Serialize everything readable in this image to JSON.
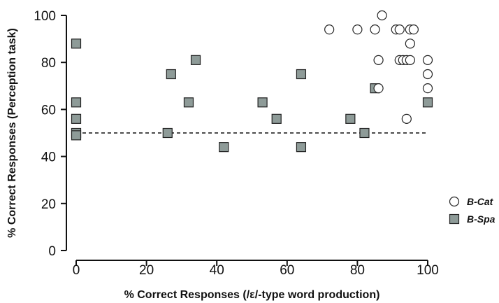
{
  "chart_data": {
    "type": "scatter",
    "xlabel": "% Correct Responses (/ε/-type word production)",
    "ylabel": "% Correct Responses (Perception task)",
    "xlim": [
      0,
      100
    ],
    "ylim": [
      0,
      100
    ],
    "x_ticks": [
      0,
      20,
      40,
      60,
      80,
      100
    ],
    "y_ticks": [
      0,
      20,
      40,
      60,
      80,
      100
    ],
    "grid": false,
    "legend_position": "right",
    "reference_line": {
      "y": 50,
      "style": "dashed"
    },
    "series": [
      {
        "name": "B-Cat",
        "marker": "circle",
        "color": "#ffffff",
        "points": [
          [
            87,
            100
          ],
          [
            72,
            94
          ],
          [
            80,
            94
          ],
          [
            85,
            94
          ],
          [
            91,
            94
          ],
          [
            92,
            94
          ],
          [
            95,
            94
          ],
          [
            96,
            94
          ],
          [
            95,
            88
          ],
          [
            86,
            81
          ],
          [
            92,
            81
          ],
          [
            93,
            81
          ],
          [
            94,
            81
          ],
          [
            95,
            81
          ],
          [
            100,
            81
          ],
          [
            100,
            75
          ],
          [
            86,
            69
          ],
          [
            100,
            69
          ],
          [
            94,
            56
          ]
        ]
      },
      {
        "name": "B-Spa",
        "marker": "square",
        "color": "#8e9b98",
        "points": [
          [
            0,
            88
          ],
          [
            0,
            63
          ],
          [
            0,
            56
          ],
          [
            0,
            50
          ],
          [
            0,
            49
          ],
          [
            27,
            75
          ],
          [
            34,
            81
          ],
          [
            32,
            63
          ],
          [
            26,
            50
          ],
          [
            42,
            44
          ],
          [
            53,
            63
          ],
          [
            57,
            56
          ],
          [
            64,
            75
          ],
          [
            64,
            44
          ],
          [
            78,
            56
          ],
          [
            82,
            50
          ],
          [
            85,
            69
          ],
          [
            100,
            63
          ]
        ]
      }
    ]
  }
}
